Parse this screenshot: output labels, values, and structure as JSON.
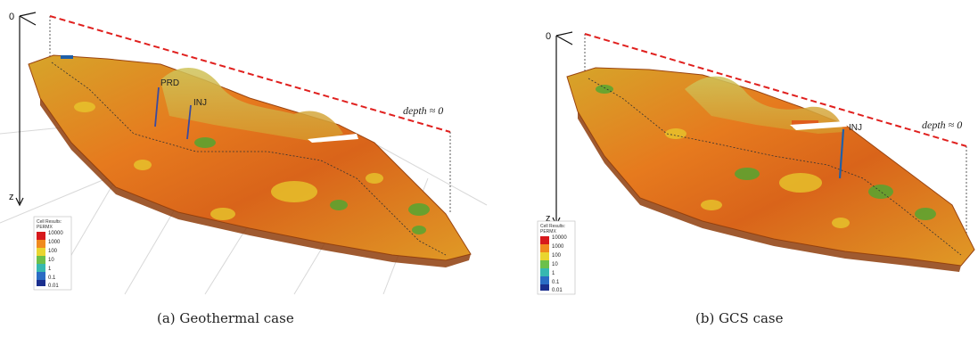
{
  "panels": [
    {
      "caption": "(a) Geothermal case",
      "origin_label": "0",
      "z_label": "z",
      "depth_label": "depth ≈ 0",
      "wells": [
        "PRD",
        "INJ"
      ],
      "legend": {
        "title_line1": "Cell Results:",
        "title_line2": "PERMX",
        "ticks": [
          "10000",
          "1000",
          "100",
          "10",
          "1",
          "0.1",
          "0.01"
        ]
      }
    },
    {
      "caption": "(b) GCS case",
      "origin_label": "0",
      "z_label": "z",
      "depth_label": "depth ≈ 0",
      "wells": [
        "INJ"
      ],
      "legend": {
        "title_line1": "Cell Results:",
        "title_line2": "PERMX",
        "ticks": [
          "10000",
          "1000",
          "100",
          "10",
          "1",
          "0.1",
          "0.01"
        ]
      }
    }
  ],
  "colors": {
    "depth_line": "#e0201e",
    "rock_dark": "#b84a12",
    "rock_orange": "#e8741c",
    "rock_yellow": "#e7c62c",
    "rock_green": "#4da832",
    "well_blue": "#1f5fa8"
  }
}
